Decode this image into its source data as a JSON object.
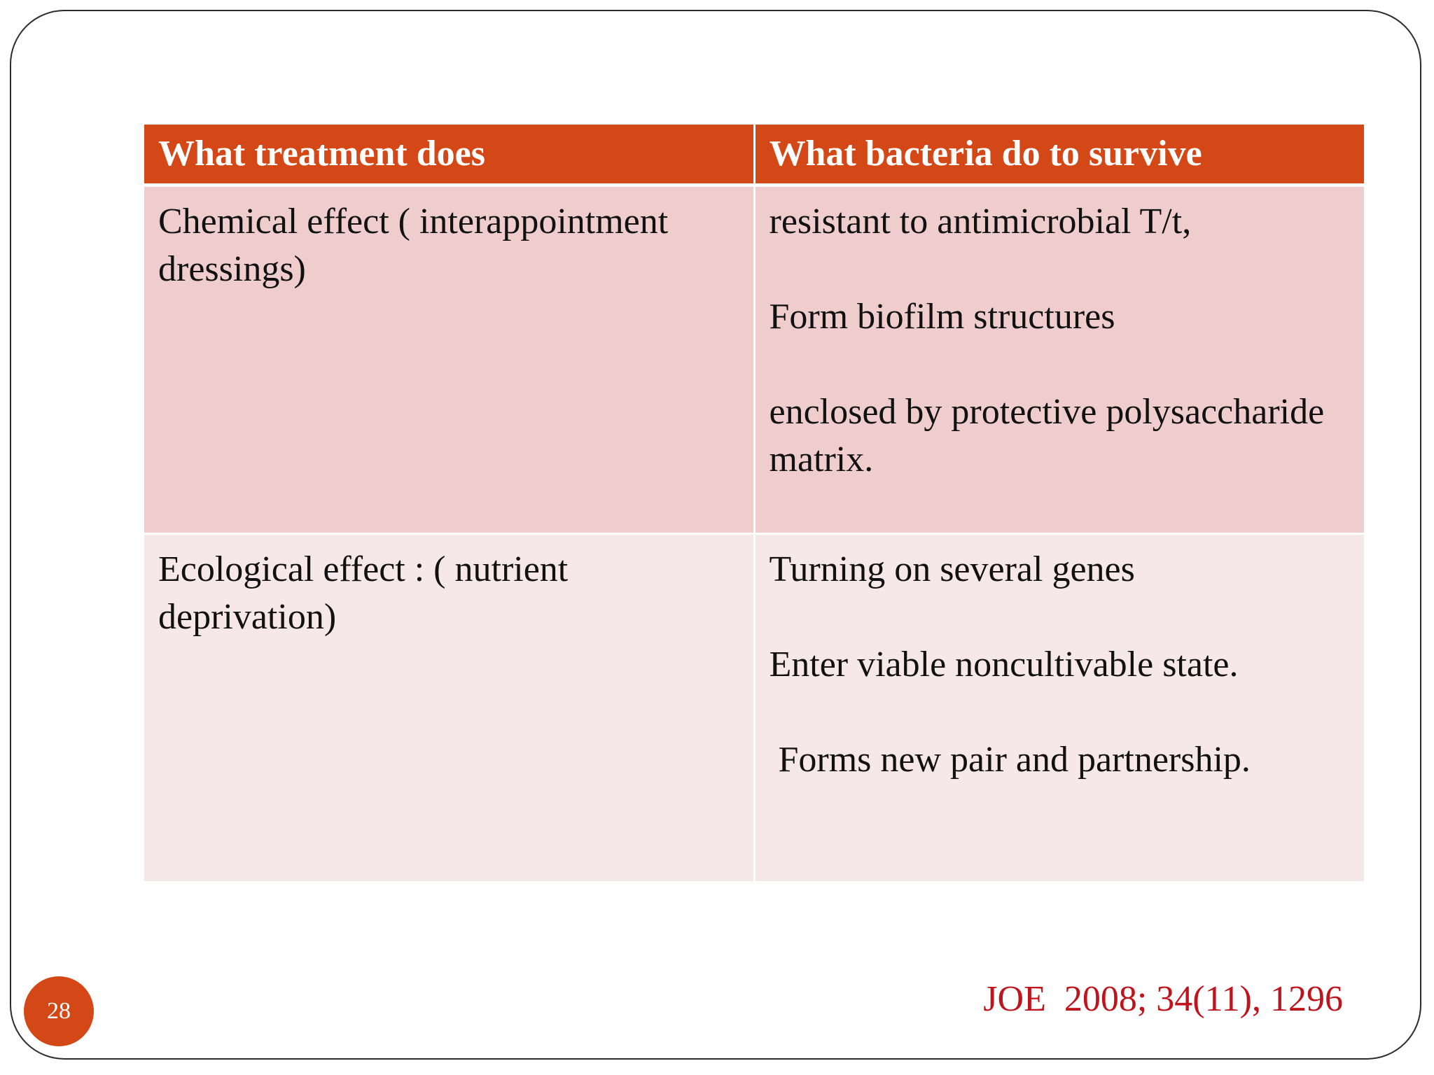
{
  "table": {
    "headers": [
      "What treatment does",
      "What bacteria do to survive"
    ],
    "rows": [
      {
        "treatment": "Chemical effect ( interappointment dressings)",
        "survival": [
          "resistant to antimicrobial T/t,",
          "Form biofilm structures",
          "enclosed by protective polysaccharide matrix."
        ]
      },
      {
        "treatment": "Ecological effect : ( nutrient deprivation)",
        "survival": [
          "Turning on several genes",
          "Enter viable noncultivable state.",
          " Forms new pair and partnership."
        ]
      }
    ]
  },
  "citation": "JOE  2008; 34(11), 1296",
  "page_number": "28",
  "colors": {
    "header_bg": "#d34816",
    "row1_bg": "#efcdcd",
    "row2_bg": "#f6e8e8",
    "citation": "#c0141c"
  }
}
